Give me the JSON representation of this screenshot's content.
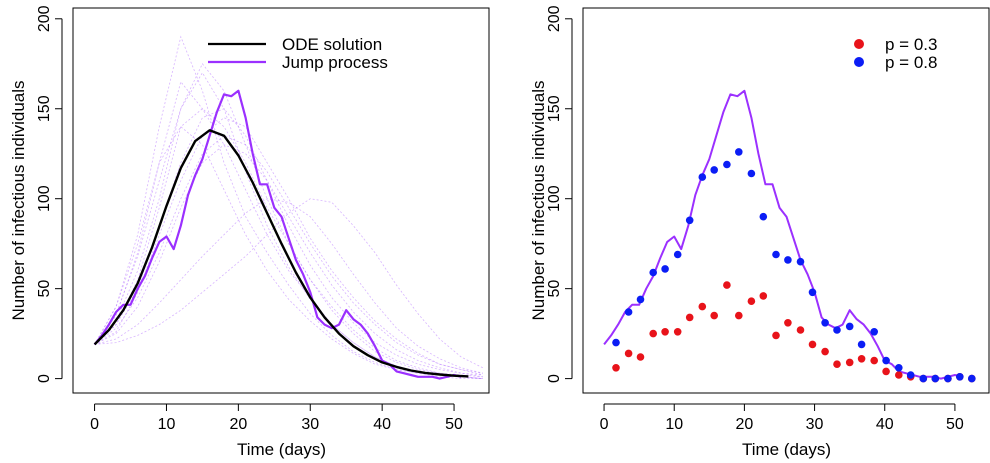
{
  "chart_data": [
    {
      "type": "line",
      "xlabel": "Time (days)",
      "ylabel": "Number of infectious individuals",
      "xlim": [
        -3,
        55
      ],
      "ylim": [
        -8,
        206
      ],
      "xticks": [
        0,
        10,
        20,
        30,
        40,
        50
      ],
      "yticks": [
        0,
        50,
        100,
        150,
        200
      ],
      "legend_position": "top",
      "legend": [
        {
          "label": "ODE solution",
          "color": "#000000"
        },
        {
          "label": "Jump process",
          "color": "#9b30ff"
        }
      ],
      "series": [
        {
          "name": "ODE solution",
          "color": "#000000",
          "x": [
            0,
            2,
            4,
            6,
            8,
            10,
            12,
            14,
            16,
            18,
            20,
            22,
            24,
            26,
            28,
            30,
            32,
            34,
            36,
            38,
            40,
            42,
            44,
            46,
            48,
            50,
            52
          ],
          "y": [
            19,
            27,
            38,
            53,
            73,
            96,
            117,
            132,
            138,
            135,
            124,
            109,
            92,
            75,
            59,
            45,
            34,
            25,
            18,
            13,
            9,
            6.5,
            4.5,
            3.2,
            2.3,
            1.6,
            1.2
          ]
        },
        {
          "name": "Jump process",
          "color": "#9b30ff",
          "x": [
            0,
            1,
            2,
            3,
            4,
            5,
            6,
            7,
            8,
            9,
            10,
            11,
            12,
            13,
            14,
            15,
            16,
            17,
            18,
            19,
            20,
            21,
            22,
            23,
            24,
            25,
            26,
            27,
            28,
            29,
            30,
            31,
            32,
            33,
            34,
            35,
            36,
            37,
            38,
            39,
            40,
            41,
            42,
            43,
            44,
            45,
            46,
            47,
            48,
            49,
            50,
            51
          ],
          "y": [
            19,
            24,
            30,
            37,
            41,
            41,
            50,
            57,
            67,
            76,
            79,
            72,
            85,
            102,
            113,
            122,
            135,
            148,
            158,
            157,
            160,
            145,
            125,
            108,
            108,
            95,
            90,
            78,
            66,
            58,
            48,
            34,
            30,
            28,
            30,
            38,
            33,
            30,
            25,
            18,
            10,
            8,
            4,
            3,
            2,
            1,
            1,
            1,
            0,
            1,
            2,
            1
          ]
        }
      ],
      "faint_series": [
        {
          "x": [
            0,
            3,
            6,
            9,
            12,
            15,
            18,
            21,
            24,
            27,
            30,
            33,
            36,
            39,
            42,
            45,
            48,
            51,
            54
          ],
          "y": [
            19,
            40,
            80,
            140,
            190,
            160,
            120,
            90,
            70,
            52,
            36,
            24,
            15,
            9,
            5,
            3,
            2,
            1,
            0
          ]
        },
        {
          "x": [
            0,
            3,
            6,
            9,
            12,
            15,
            18,
            21,
            24,
            27,
            30,
            33,
            36,
            39,
            42,
            45,
            48,
            51,
            54
          ],
          "y": [
            19,
            35,
            70,
            120,
            165,
            150,
            130,
            105,
            80,
            60,
            45,
            30,
            20,
            12,
            7,
            4,
            2,
            1,
            0
          ]
        },
        {
          "x": [
            0,
            3,
            6,
            9,
            12,
            15,
            18,
            21,
            24,
            27,
            30,
            33,
            36,
            39,
            42,
            45,
            48,
            51,
            54
          ],
          "y": [
            19,
            30,
            55,
            95,
            140,
            150,
            140,
            120,
            95,
            75,
            55,
            40,
            27,
            17,
            10,
            6,
            3,
            2,
            1
          ]
        },
        {
          "x": [
            0,
            3,
            6,
            9,
            12,
            15,
            18,
            21,
            24,
            27,
            30,
            33,
            36,
            39,
            42,
            45,
            48,
            51,
            54
          ],
          "y": [
            19,
            25,
            40,
            65,
            95,
            120,
            130,
            125,
            110,
            90,
            70,
            52,
            37,
            25,
            16,
            10,
            6,
            3,
            2
          ]
        },
        {
          "x": [
            0,
            3,
            6,
            9,
            12,
            15,
            18,
            21,
            24,
            27,
            30,
            33,
            36,
            39,
            42,
            45,
            48,
            51,
            54
          ],
          "y": [
            19,
            28,
            45,
            70,
            100,
            125,
            135,
            130,
            115,
            95,
            75,
            57,
            42,
            30,
            20,
            13,
            8,
            5,
            3
          ]
        },
        {
          "x": [
            0,
            3,
            6,
            9,
            12,
            15,
            18,
            21,
            24,
            27,
            30,
            33,
            36,
            39,
            42,
            45,
            48,
            51,
            54
          ],
          "y": [
            19,
            22,
            30,
            42,
            55,
            68,
            80,
            92,
            100,
            98,
            90,
            75,
            58,
            42,
            28,
            18,
            11,
            6,
            3
          ]
        },
        {
          "x": [
            0,
            3,
            6,
            9,
            12,
            15,
            18,
            21,
            24,
            27,
            30,
            33,
            36,
            39,
            42,
            45,
            48,
            51,
            54
          ],
          "y": [
            19,
            40,
            75,
            120,
            140,
            130,
            105,
            80,
            60,
            44,
            32,
            22,
            14,
            8,
            5,
            3,
            1,
            0,
            0
          ]
        },
        {
          "x": [
            0,
            3,
            6,
            9,
            12,
            15,
            18,
            21,
            24,
            27,
            30,
            33,
            36,
            39,
            42,
            45,
            48,
            51,
            54
          ],
          "y": [
            19,
            32,
            60,
            100,
            150,
            175,
            160,
            130,
            100,
            75,
            55,
            38,
            25,
            15,
            9,
            5,
            3,
            1,
            0
          ]
        },
        {
          "x": [
            0,
            3,
            6,
            9,
            12,
            15,
            18,
            21,
            24,
            27,
            30,
            33,
            36,
            39,
            42,
            45,
            48,
            51,
            54
          ],
          "y": [
            19,
            26,
            48,
            80,
            110,
            135,
            145,
            140,
            120,
            100,
            78,
            60,
            45,
            32,
            22,
            14,
            8,
            5,
            2
          ]
        },
        {
          "x": [
            0,
            3,
            6,
            9,
            12,
            15,
            18,
            21,
            24,
            27,
            30,
            33,
            36,
            39,
            42,
            45,
            48,
            51,
            54
          ],
          "y": [
            19,
            20,
            24,
            30,
            38,
            48,
            58,
            68,
            80,
            92,
            100,
            98,
            85,
            70,
            52,
            36,
            22,
            12,
            6
          ]
        },
        {
          "x": [
            0,
            3,
            6,
            9,
            12,
            15,
            18,
            21,
            24,
            27,
            30,
            33,
            36,
            39,
            42,
            45,
            48,
            51,
            54
          ],
          "y": [
            19,
            36,
            68,
            110,
            150,
            170,
            150,
            115,
            85,
            62,
            44,
            30,
            20,
            12,
            7,
            4,
            2,
            1,
            0
          ]
        },
        {
          "x": [
            0,
            3,
            6,
            9,
            12,
            15,
            18,
            21,
            24,
            27,
            30,
            33,
            36,
            39,
            42,
            45,
            48,
            51,
            54
          ],
          "y": [
            19,
            30,
            50,
            85,
            120,
            145,
            150,
            135,
            110,
            85,
            63,
            45,
            31,
            20,
            13,
            8,
            5,
            3,
            1
          ]
        }
      ]
    },
    {
      "type": "scatter",
      "xlabel": "Time (days)",
      "ylabel": "Number of infectious individuals",
      "xlim": [
        -3,
        55
      ],
      "ylim": [
        -8,
        206
      ],
      "xticks": [
        0,
        10,
        20,
        30,
        40,
        50
      ],
      "yticks": [
        0,
        50,
        100,
        150,
        200
      ],
      "legend_position": "top-right",
      "legend": [
        {
          "label": "p = 0.3",
          "color": "#e8131a"
        },
        {
          "label": "p = 0.8",
          "color": "#0b1df5"
        }
      ],
      "line": {
        "color": "#9b30ff",
        "x": [
          0,
          1,
          2,
          3,
          4,
          5,
          6,
          7,
          8,
          9,
          10,
          11,
          12,
          13,
          14,
          15,
          16,
          17,
          18,
          19,
          20,
          21,
          22,
          23,
          24,
          25,
          26,
          27,
          28,
          29,
          30,
          31,
          32,
          33,
          34,
          35,
          36,
          37,
          38,
          39,
          40,
          41,
          42,
          43,
          44,
          45,
          46,
          47,
          48,
          49,
          50,
          51
        ],
        "y": [
          19,
          24,
          30,
          37,
          41,
          41,
          50,
          57,
          67,
          76,
          79,
          72,
          85,
          102,
          113,
          122,
          135,
          148,
          158,
          157,
          160,
          145,
          125,
          108,
          108,
          95,
          90,
          78,
          66,
          58,
          48,
          34,
          30,
          28,
          30,
          38,
          33,
          30,
          25,
          18,
          10,
          8,
          4,
          3,
          2,
          1,
          1,
          1,
          0,
          1,
          2,
          1
        ]
      },
      "series": [
        {
          "name": "p = 0.3",
          "color": "#e8131a",
          "x": [
            1.7,
            3.5,
            5.2,
            7.0,
            8.7,
            10.5,
            12.2,
            14.0,
            15.7,
            17.5,
            19.2,
            21.0,
            22.7,
            24.5,
            26.2,
            28.0,
            29.7,
            31.5,
            33.2,
            35.0,
            36.7,
            38.5,
            40.2,
            42.0,
            43.7,
            45.5,
            47.2,
            49.0,
            50.7,
            52.4
          ],
          "y": [
            6,
            14,
            12,
            25,
            26,
            26,
            34,
            40,
            35,
            52,
            35,
            43,
            46,
            24,
            31,
            27,
            19,
            15,
            8,
            9,
            11,
            10,
            4,
            2,
            1,
            0,
            0,
            0,
            1,
            0
          ]
        },
        {
          "name": "p = 0.8",
          "color": "#0b1df5",
          "x": [
            1.7,
            3.5,
            5.2,
            7.0,
            8.7,
            10.5,
            12.2,
            14.0,
            15.7,
            17.5,
            19.2,
            21.0,
            22.7,
            24.5,
            26.2,
            28.0,
            29.7,
            31.5,
            33.2,
            35.0,
            36.7,
            38.5,
            40.2,
            42.0,
            43.7,
            45.5,
            47.2,
            49.0,
            50.7,
            52.4
          ],
          "y": [
            20,
            37,
            44,
            59,
            61,
            69,
            88,
            112,
            116,
            119,
            126,
            114,
            90,
            69,
            66,
            65,
            48,
            31,
            27,
            29,
            19,
            26,
            10,
            6,
            2,
            0,
            0,
            0,
            1,
            0
          ]
        }
      ]
    }
  ]
}
